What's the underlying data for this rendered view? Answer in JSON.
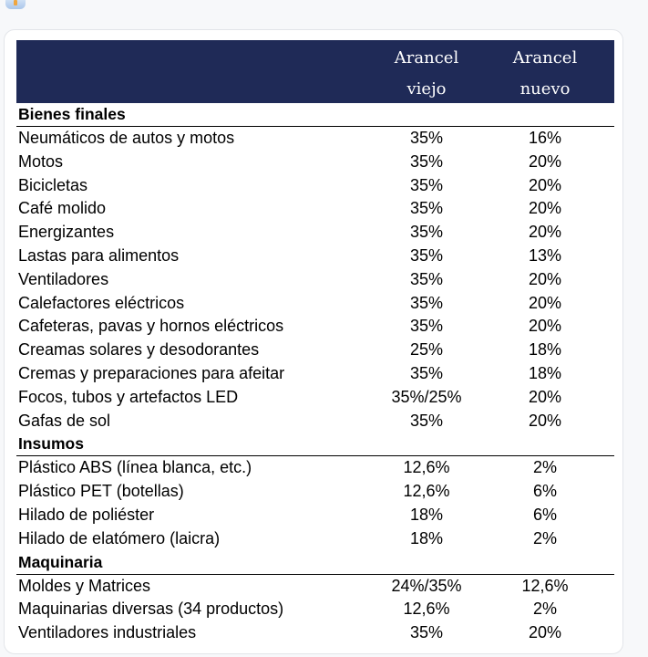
{
  "header": {
    "col1": [
      "Arancel",
      "viejo"
    ],
    "col2": [
      "Arancel",
      "nuevo"
    ]
  },
  "sections": [
    {
      "title": "Bienes finales",
      "rows": [
        [
          "Neumáticos de autos y motos",
          "35%",
          "16%"
        ],
        [
          "Motos",
          "35%",
          "20%"
        ],
        [
          "Bicicletas",
          "35%",
          "20%"
        ],
        [
          "Café molido",
          "35%",
          "20%"
        ],
        [
          "Energizantes",
          "35%",
          "20%"
        ],
        [
          "Lastas para alimentos",
          "35%",
          "13%"
        ],
        [
          "Ventiladores",
          "35%",
          "20%"
        ],
        [
          "Calefactores eléctricos",
          "35%",
          "20%"
        ],
        [
          "Cafeteras, pavas y hornos eléctricos",
          "35%",
          "20%"
        ],
        [
          "Creamas solares y desodorantes",
          "25%",
          "18%"
        ],
        [
          "Cremas y preparaciones para afeitar",
          "35%",
          "18%"
        ],
        [
          "Focos, tubos y artefactos LED",
          "35%/25%",
          "20%"
        ],
        [
          "Gafas de sol",
          "35%",
          "20%"
        ]
      ]
    },
    {
      "title": "Insumos",
      "rows": [
        [
          "Plástico ABS (línea blanca, etc.)",
          "12,6%",
          "2%"
        ],
        [
          "Plástico PET (botellas)",
          "12,6%",
          "6%"
        ],
        [
          "Hilado de poliéster",
          "18%",
          "6%"
        ],
        [
          "Hilado de elatómero (laicra)",
          "18%",
          "2%"
        ]
      ]
    },
    {
      "title": "Maquinaria",
      "rows": [
        [
          "Moldes y Matrices",
          "24%/35%",
          "12,6%"
        ],
        [
          "Maquinarias diversas (34 productos)",
          "12,6%",
          "2%"
        ],
        [
          "Ventiladores industriales",
          "35%",
          "20%"
        ]
      ]
    }
  ]
}
